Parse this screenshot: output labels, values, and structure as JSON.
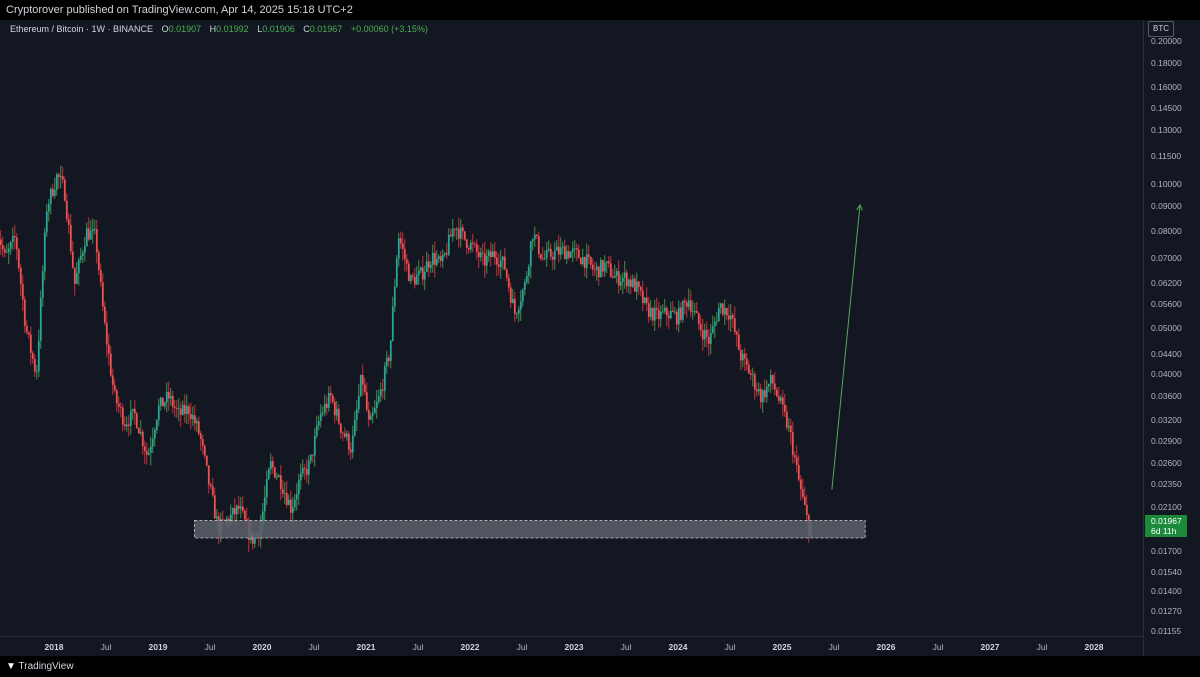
{
  "header": {
    "published": "Cryptorover published on TradingView.com, Apr 14, 2025 15:18 UTC+2"
  },
  "legend": {
    "symbol": "Ethereum / Bitcoin · 1W · BINANCE",
    "o_label": "O",
    "o": "0.01907",
    "h_label": "H",
    "h": "0.01992",
    "l_label": "L",
    "l": "0.01906",
    "c_label": "C",
    "c": "0.01967",
    "change": "+0.00060 (+3.15%)"
  },
  "currency_button": "BTC",
  "price_tag": {
    "price": "0.01967",
    "countdown": "6d 11h"
  },
  "footer": {
    "brand": "TradingView",
    "logo_icon": "tradingview-logo-icon"
  },
  "colors": {
    "bull": "#26a69a",
    "bear": "#ef5350",
    "wick_bull": "#4caf50",
    "wick_bear": "#f23645",
    "zone": "#5d606b",
    "arrow": "#4caf50"
  },
  "chart_data": {
    "type": "candlestick",
    "scale": "log",
    "interval": "1W",
    "ylim": [
      0.0115,
      0.2
    ],
    "yticks": [
      "0.20000",
      "0.18000",
      "0.16000",
      "0.14500",
      "0.13000",
      "0.11500",
      "0.10000",
      "0.09000",
      "0.08000",
      "0.07000",
      "0.06200",
      "0.05600",
      "0.05000",
      "0.04400",
      "0.04000",
      "0.03600",
      "0.03200",
      "0.02900",
      "0.02600",
      "0.02350",
      "0.02100",
      "0.01700",
      "0.01540",
      "0.01400",
      "0.01270",
      "0.01155"
    ],
    "xticks": [
      {
        "label": "2018",
        "t": 2018.0,
        "year": true
      },
      {
        "label": "Jul",
        "t": 2018.5,
        "year": false
      },
      {
        "label": "2019",
        "t": 2019.0,
        "year": true
      },
      {
        "label": "Jul",
        "t": 2019.5,
        "year": false
      },
      {
        "label": "2020",
        "t": 2020.0,
        "year": true
      },
      {
        "label": "Jul",
        "t": 2020.5,
        "year": false
      },
      {
        "label": "2021",
        "t": 2021.0,
        "year": true
      },
      {
        "label": "Jul",
        "t": 2021.5,
        "year": false
      },
      {
        "label": "2022",
        "t": 2022.0,
        "year": true
      },
      {
        "label": "Jul",
        "t": 2022.5,
        "year": false
      },
      {
        "label": "2023",
        "t": 2023.0,
        "year": true
      },
      {
        "label": "Jul",
        "t": 2023.5,
        "year": false
      },
      {
        "label": "2024",
        "t": 2024.0,
        "year": true
      },
      {
        "label": "Jul",
        "t": 2024.5,
        "year": false
      },
      {
        "label": "2025",
        "t": 2025.0,
        "year": true
      },
      {
        "label": "Jul",
        "t": 2025.5,
        "year": false
      },
      {
        "label": "2026",
        "t": 2026.0,
        "year": true
      },
      {
        "label": "Jul",
        "t": 2026.5,
        "year": false
      },
      {
        "label": "2027",
        "t": 2027.0,
        "year": true
      },
      {
        "label": "Jul",
        "t": 2027.5,
        "year": false
      },
      {
        "label": "2028",
        "t": 2028.0,
        "year": true
      }
    ],
    "price_path": [
      [
        2017.45,
        0.085
      ],
      [
        2017.55,
        0.07
      ],
      [
        2017.65,
        0.078
      ],
      [
        2017.75,
        0.05
      ],
      [
        2017.85,
        0.04
      ],
      [
        2017.95,
        0.09
      ],
      [
        2018.05,
        0.105
      ],
      [
        2018.12,
        0.098
      ],
      [
        2018.22,
        0.062
      ],
      [
        2018.33,
        0.08
      ],
      [
        2018.42,
        0.078
      ],
      [
        2018.5,
        0.052
      ],
      [
        2018.6,
        0.036
      ],
      [
        2018.7,
        0.032
      ],
      [
        2018.8,
        0.033
      ],
      [
        2018.92,
        0.027
      ],
      [
        2019.02,
        0.034
      ],
      [
        2019.12,
        0.036
      ],
      [
        2019.22,
        0.033
      ],
      [
        2019.32,
        0.034
      ],
      [
        2019.42,
        0.03
      ],
      [
        2019.52,
        0.023
      ],
      [
        2019.6,
        0.019
      ],
      [
        2019.7,
        0.02
      ],
      [
        2019.8,
        0.021
      ],
      [
        2019.92,
        0.018
      ],
      [
        2020.0,
        0.019
      ],
      [
        2020.1,
        0.026
      ],
      [
        2020.2,
        0.024
      ],
      [
        2020.3,
        0.021
      ],
      [
        2020.38,
        0.024
      ],
      [
        2020.48,
        0.026
      ],
      [
        2020.58,
        0.033
      ],
      [
        2020.68,
        0.036
      ],
      [
        2020.78,
        0.031
      ],
      [
        2020.88,
        0.028
      ],
      [
        2020.98,
        0.04
      ],
      [
        2021.05,
        0.031
      ],
      [
        2021.15,
        0.036
      ],
      [
        2021.25,
        0.045
      ],
      [
        2021.33,
        0.079
      ],
      [
        2021.45,
        0.063
      ],
      [
        2021.55,
        0.065
      ],
      [
        2021.65,
        0.071
      ],
      [
        2021.75,
        0.068
      ],
      [
        2021.87,
        0.083
      ],
      [
        2021.95,
        0.078
      ],
      [
        2022.05,
        0.074
      ],
      [
        2022.15,
        0.069
      ],
      [
        2022.25,
        0.072
      ],
      [
        2022.35,
        0.068
      ],
      [
        2022.45,
        0.054
      ],
      [
        2022.55,
        0.062
      ],
      [
        2022.62,
        0.08
      ],
      [
        2022.72,
        0.07
      ],
      [
        2022.82,
        0.072
      ],
      [
        2022.92,
        0.073
      ],
      [
        2023.02,
        0.072
      ],
      [
        2023.12,
        0.07
      ],
      [
        2023.22,
        0.066
      ],
      [
        2023.32,
        0.068
      ],
      [
        2023.42,
        0.064
      ],
      [
        2023.52,
        0.064
      ],
      [
        2023.62,
        0.061
      ],
      [
        2023.72,
        0.055
      ],
      [
        2023.82,
        0.053
      ],
      [
        2023.92,
        0.054
      ],
      [
        2024.02,
        0.053
      ],
      [
        2024.12,
        0.058
      ],
      [
        2024.22,
        0.051
      ],
      [
        2024.32,
        0.047
      ],
      [
        2024.42,
        0.056
      ],
      [
        2024.52,
        0.054
      ],
      [
        2024.62,
        0.044
      ],
      [
        2024.72,
        0.04
      ],
      [
        2024.82,
        0.036
      ],
      [
        2024.92,
        0.039
      ],
      [
        2025.02,
        0.034
      ],
      [
        2025.1,
        0.03
      ],
      [
        2025.18,
        0.024
      ],
      [
        2025.28,
        0.019
      ]
    ],
    "support_zone": {
      "from": 2019.35,
      "to": 2025.8,
      "low": 0.0182,
      "high": 0.0198
    },
    "projection_arrow": {
      "from": [
        2025.48,
        0.023
      ],
      "to": [
        2025.75,
        0.091
      ]
    },
    "last_price": 0.01967
  }
}
